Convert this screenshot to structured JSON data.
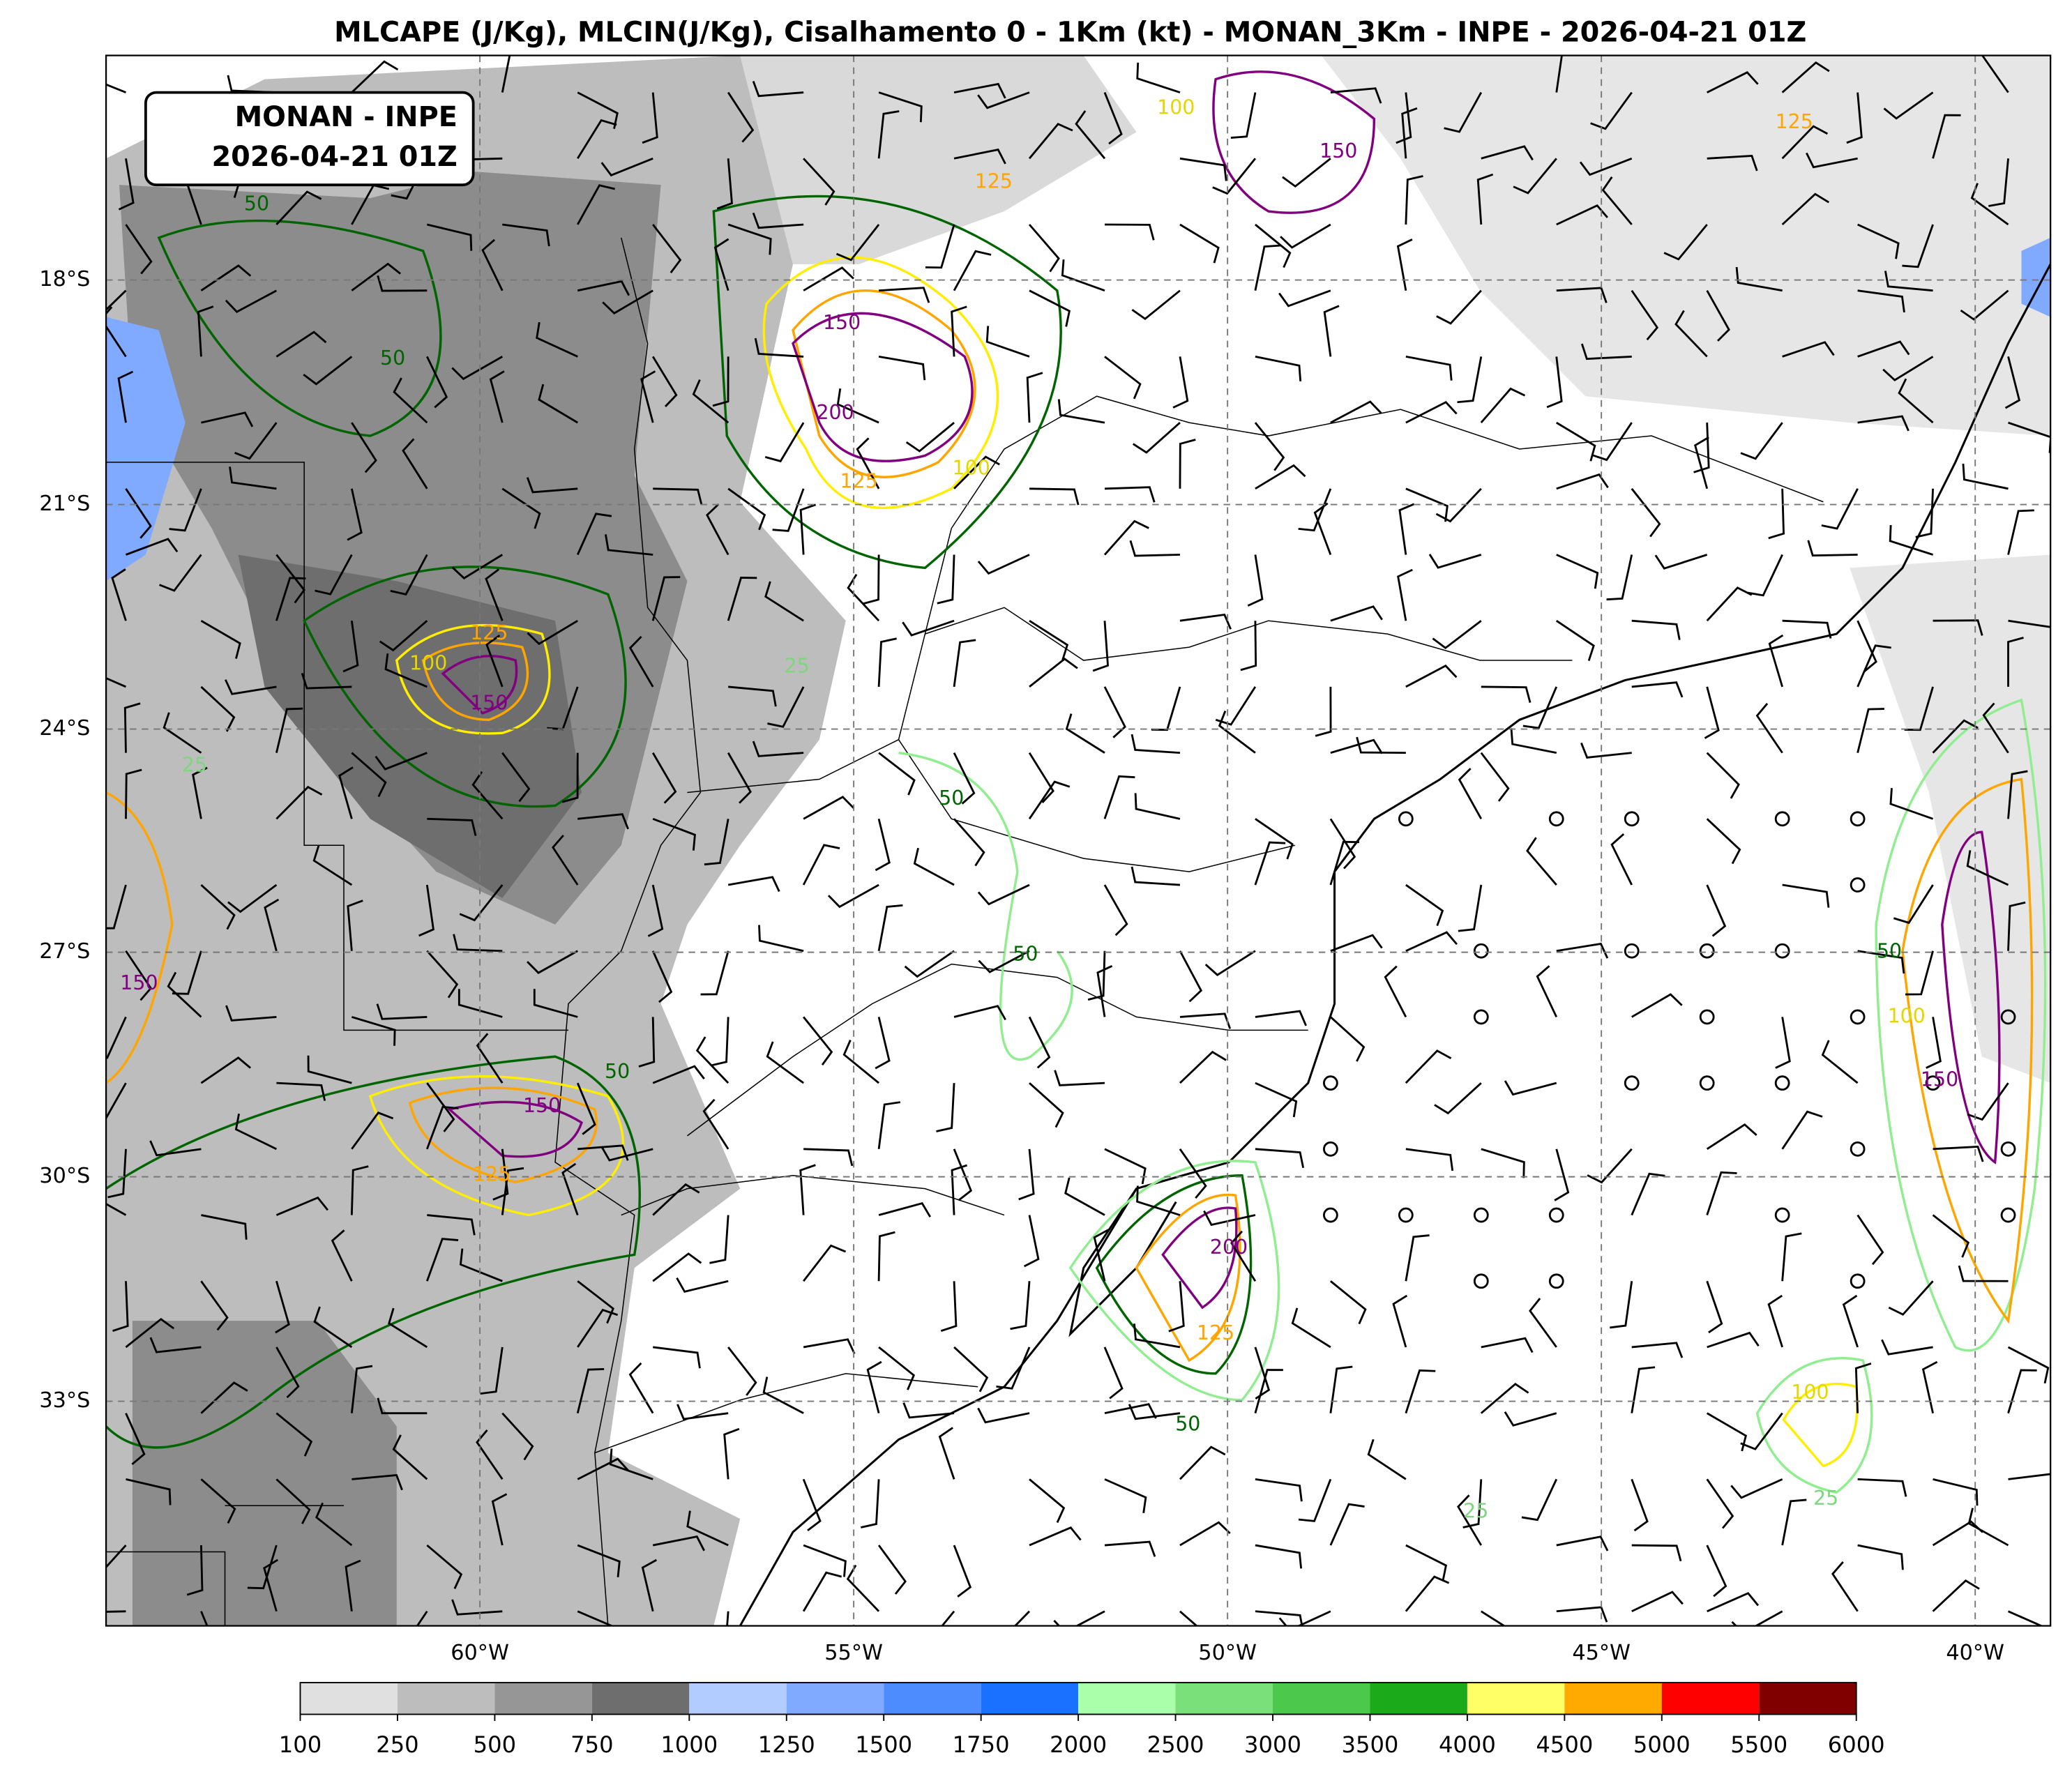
{
  "title": "MLCAPE (J/Kg), MLCIN(J/Kg), Cisalhamento 0 - 1Km (kt) - MONAN_3Km - INPE - 2026-04-21 01Z",
  "info_box": {
    "line1": "MONAN - INPE",
    "line2": "2026-04-21 01Z"
  },
  "lat_labels": [
    "18°S",
    "21°S",
    "24°S",
    "27°S",
    "30°S",
    "33°S"
  ],
  "lon_labels": [
    "60°W",
    "55°W",
    "50°W",
    "45°W",
    "40°W"
  ],
  "colorbar": {
    "levels": [
      100,
      250,
      500,
      750,
      1000,
      1250,
      1500,
      1750,
      2000,
      2500,
      3000,
      3500,
      4000,
      4500,
      5000,
      5500,
      6000
    ],
    "colors": [
      "#e0e0e0",
      "#bdbdbd",
      "#969696",
      "#6e6e6e",
      "#b3ccff",
      "#80aaff",
      "#4d8cff",
      "#1a70ff",
      "#aaffaa",
      "#7ae07a",
      "#4cc84c",
      "#1aaa1a",
      "#ffff66",
      "#ffaa00",
      "#ff0000",
      "#800000"
    ]
  },
  "contour_labels": [
    "150",
    "200",
    "125",
    "100",
    "125",
    "150",
    "100",
    "50",
    "50",
    "150",
    "125",
    "50",
    "200",
    "125",
    "50",
    "25",
    "150",
    "100",
    "50",
    "25",
    "100",
    "150",
    "25",
    "150",
    "100",
    "125",
    "125",
    "50",
    "50",
    "25"
  ]
}
